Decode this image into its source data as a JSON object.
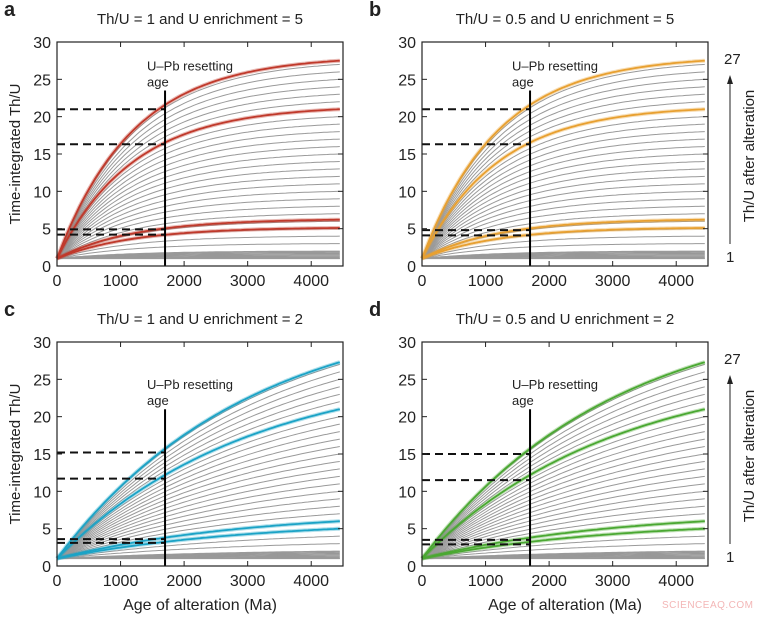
{
  "chart_data": [
    {
      "panel": "a",
      "type": "line",
      "title": "Th/U = 1 and U enrichment = 5",
      "ylabel": "Time-integrated Th/U",
      "xlabel": "",
      "xlim": [
        0,
        4500
      ],
      "ylim": [
        0,
        30
      ],
      "xticks": [
        0,
        1000,
        2000,
        3000,
        4000
      ],
      "yticks": [
        0,
        5,
        10,
        15,
        20,
        25,
        30
      ],
      "highlight_color": "#c0392b",
      "curvature_ma": 1200,
      "start_value": 1,
      "gray_final_values": [
        1,
        2,
        3,
        4,
        5,
        6,
        7,
        8,
        9,
        10,
        11,
        12,
        13,
        14,
        15,
        16,
        17,
        18,
        19,
        20,
        21,
        22,
        23,
        24,
        25,
        26,
        27
      ],
      "highlight_final_values": [
        27.5,
        21,
        6.2,
        5.1
      ],
      "resetting_age": 1700,
      "resetting_label": [
        "U–Pb resetting",
        "age"
      ],
      "resetting_line_top": 23.5,
      "dashed_levels": [
        21,
        16.3,
        4.9,
        4.2
      ]
    },
    {
      "panel": "b",
      "type": "line",
      "title": "Th/U = 0.5 and U enrichment = 5",
      "ylabel": "",
      "xlabel": "",
      "xlim": [
        0,
        4500
      ],
      "ylim": [
        0,
        30
      ],
      "xticks": [
        0,
        1000,
        2000,
        3000,
        4000
      ],
      "yticks": [
        0,
        5,
        10,
        15,
        20,
        25,
        30
      ],
      "highlight_color": "#e8a030",
      "curvature_ma": 1200,
      "start_value": 1,
      "gray_final_values": [
        1,
        2,
        3,
        4,
        5,
        6,
        7,
        8,
        9,
        10,
        11,
        12,
        13,
        14,
        15,
        16,
        17,
        18,
        19,
        20,
        21,
        22,
        23,
        24,
        25,
        26,
        27
      ],
      "highlight_final_values": [
        27.5,
        21,
        6.2,
        5.1
      ],
      "resetting_age": 1700,
      "resetting_label": [
        "U–Pb resetting",
        "age"
      ],
      "resetting_line_top": 23.5,
      "dashed_levels": [
        21,
        16.3,
        4.8,
        4.1
      ],
      "side_label": "Th/U after alteration",
      "side_top": "27",
      "side_bottom": "1"
    },
    {
      "panel": "c",
      "type": "line",
      "title": "Th/U = 1 and U enrichment = 2",
      "ylabel": "Time-integrated Th/U",
      "xlabel": "Age of alteration (Ma)",
      "xlim": [
        0,
        4500
      ],
      "ylim": [
        0,
        30
      ],
      "xticks": [
        0,
        1000,
        2000,
        3000,
        4000
      ],
      "yticks": [
        0,
        5,
        10,
        15,
        20,
        25,
        30
      ],
      "highlight_color": "#1ba3c6",
      "curvature_ma": 3000,
      "start_value": 1,
      "gray_final_values": [
        1,
        2,
        3,
        4,
        5,
        6,
        7,
        8,
        9,
        10,
        11,
        12,
        13,
        14,
        15,
        16,
        17,
        18,
        19,
        20,
        21,
        22,
        23,
        24,
        25,
        26,
        27
      ],
      "highlight_final_values": [
        27.3,
        21,
        6.0,
        5.0
      ],
      "resetting_age": 1700,
      "resetting_label": [
        "U–Pb resetting",
        "age"
      ],
      "resetting_line_top": 21,
      "dashed_levels": [
        15.2,
        11.7,
        3.6,
        3.1
      ]
    },
    {
      "panel": "d",
      "type": "line",
      "title": "Th/U = 0.5 and U enrichment = 2",
      "ylabel": "",
      "xlabel": "Age of alteration (Ma)",
      "xlim": [
        0,
        4500
      ],
      "ylim": [
        0,
        30
      ],
      "xticks": [
        0,
        1000,
        2000,
        3000,
        4000
      ],
      "yticks": [
        0,
        5,
        10,
        15,
        20,
        25,
        30
      ],
      "highlight_color": "#4aa832",
      "curvature_ma": 3000,
      "start_value": 1,
      "gray_final_values": [
        1,
        2,
        3,
        4,
        5,
        6,
        7,
        8,
        9,
        10,
        11,
        12,
        13,
        14,
        15,
        16,
        17,
        18,
        19,
        20,
        21,
        22,
        23,
        24,
        25,
        26,
        27
      ],
      "highlight_final_values": [
        27.3,
        21,
        6.0,
        5.0
      ],
      "resetting_age": 1700,
      "resetting_label": [
        "U–Pb resetting",
        "age"
      ],
      "resetting_line_top": 21,
      "dashed_levels": [
        15,
        11.5,
        3.5,
        2.9
      ],
      "side_label": "Th/U after alteration",
      "side_top": "27",
      "side_bottom": "1"
    }
  ],
  "watermark": "SCIENCEAQ.COM"
}
